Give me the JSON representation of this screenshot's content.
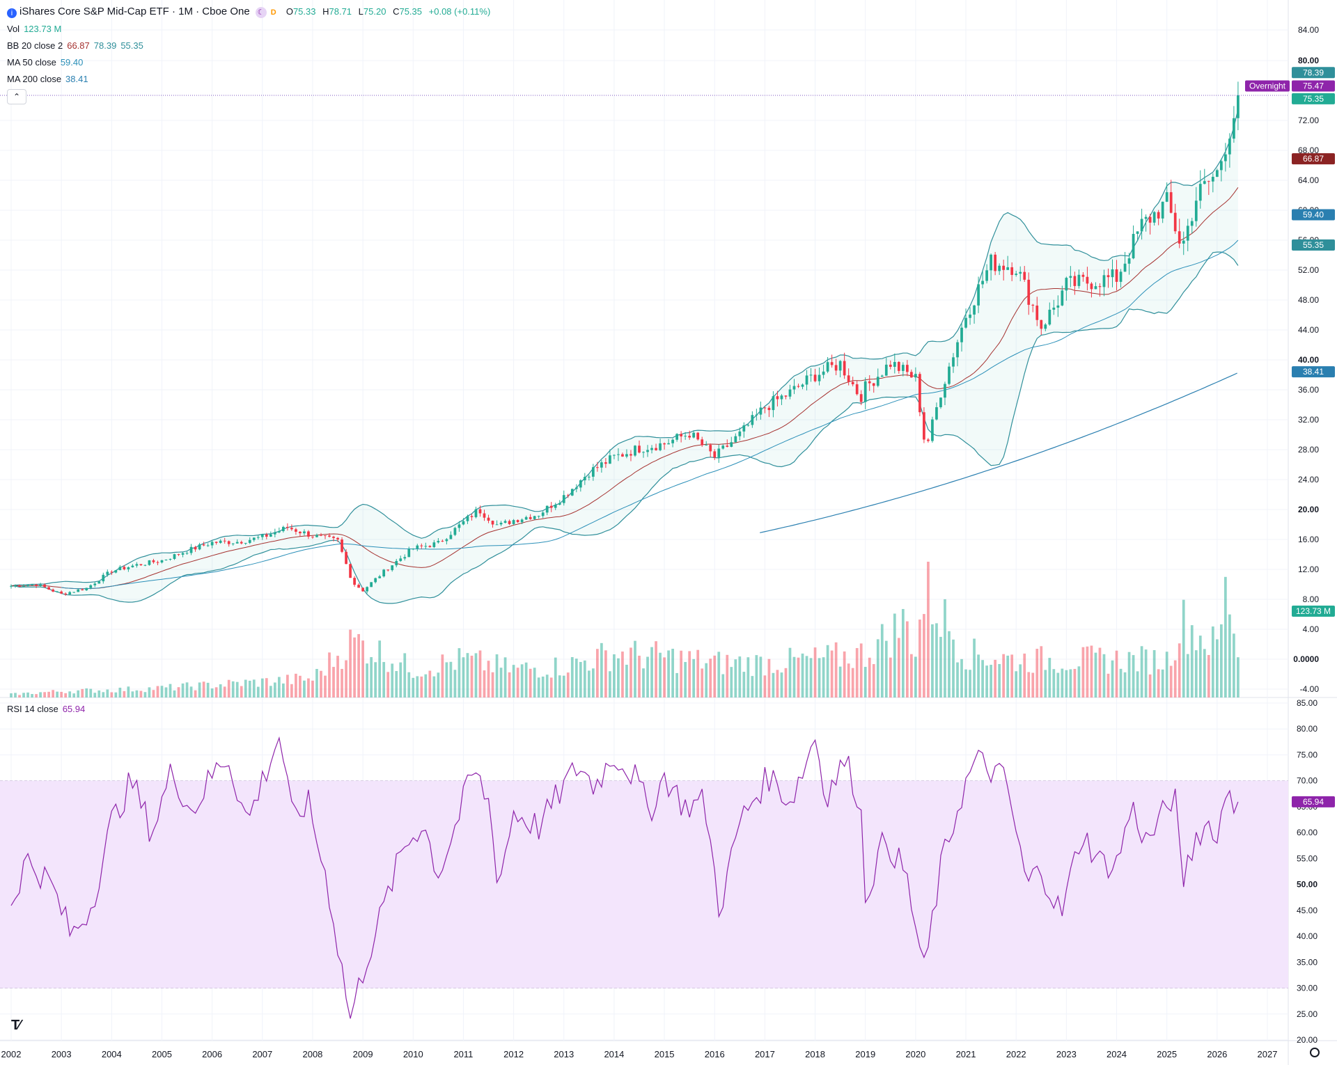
{
  "header": {
    "title": "iShares Core S&P Mid-Cap ETF · 1M · Cboe One",
    "d_badge": "D",
    "ohlc": {
      "o": "75.33",
      "h": "78.71",
      "l": "75.20",
      "c": "75.35",
      "chg": "+0.08 (+0.11%)"
    }
  },
  "indicators": {
    "vol": {
      "label": "Vol",
      "value": "123.73 M"
    },
    "bb": {
      "label": "BB 20 close 2",
      "basis": "66.87",
      "upper": "78.39",
      "lower": "55.35"
    },
    "ma50": {
      "label": "MA 50 close",
      "value": "59.40"
    },
    "ma200": {
      "label": "MA 200 close",
      "value": "38.41"
    },
    "rsi": {
      "label": "RSI 14 close",
      "value": "65.94"
    }
  },
  "price_tags": {
    "overnight": "Overnight",
    "overnight_value": "75.47",
    "last": "75.35",
    "bb_upper": "78.39",
    "bb_basis": "66.87",
    "ma50": "59.40",
    "bb_lower": "55.35",
    "ma200": "38.41",
    "volume": "123.73 M",
    "rsi": "65.94"
  },
  "icons": [
    "info-icon",
    "moon-icon",
    "tradingview-logo-icon",
    "gear-icon",
    "chevron-up-icon"
  ],
  "colors": {
    "up": "#22ab94",
    "down": "#f23645",
    "bb": "#2f8f9a",
    "bb_basis": "#a5312f",
    "ma50": "#2a8fb8",
    "ma200": "#2a7fb0",
    "rsi": "#8e24aa",
    "rsi_band": "#f3e5fc"
  },
  "chart_data": [
    {
      "type": "candlestick",
      "title": "iShares Core S&P Mid-Cap ETF",
      "interval": "1M",
      "y_axis_ticks": [
        "84.00",
        "80.00",
        "72.00",
        "68.00",
        "64.00",
        "60.00",
        "56.00",
        "52.00",
        "48.00",
        "44.00",
        "40.00",
        "36.00",
        "32.00",
        "28.00",
        "24.00",
        "20.00",
        "16.00",
        "12.00",
        "8.00",
        "4.00",
        "0.0000",
        "-4.00"
      ],
      "x_axis_ticks": [
        "2002",
        "2003",
        "2004",
        "2005",
        "2006",
        "2007",
        "2008",
        "2009",
        "2010",
        "2011",
        "2012",
        "2013",
        "2014",
        "2015",
        "2016",
        "2017",
        "2018",
        "2019",
        "2020",
        "2021",
        "2022",
        "2023",
        "2024",
        "2025",
        "2026",
        "2027"
      ],
      "close_by_year": {
        "x": [
          2002.0,
          2002.5,
          2003.0,
          2003.5,
          2004.0,
          2004.5,
          2005.0,
          2005.5,
          2006.0,
          2006.5,
          2007.0,
          2007.5,
          2008.0,
          2008.5,
          2008.8,
          2009.0,
          2009.5,
          2010.0,
          2010.5,
          2011.0,
          2011.3,
          2011.7,
          2012.0,
          2012.5,
          2013.0,
          2013.5,
          2014.0,
          2014.5,
          2015.0,
          2015.5,
          2016.0,
          2016.5,
          2017.0,
          2017.5,
          2018.0,
          2018.5,
          2018.9,
          2019.0,
          2019.5,
          2020.0,
          2020.2,
          2020.5,
          2021.0,
          2021.5,
          2022.0,
          2022.5,
          2022.8,
          2023.0,
          2023.5,
          2024.0,
          2024.5,
          2025.0,
          2025.3,
          2025.6,
          2026.0,
          2026.3,
          2026.45
        ],
        "y": [
          9.8,
          10.0,
          8.7,
          9.5,
          11.8,
          12.6,
          13.2,
          14.5,
          15.6,
          15.7,
          16.3,
          17.6,
          16.5,
          15.8,
          10.2,
          9.2,
          12.2,
          14.8,
          15.5,
          18.3,
          20.0,
          17.8,
          18.6,
          19.4,
          21.8,
          25.0,
          27.0,
          28.2,
          28.8,
          30.2,
          27.0,
          30.0,
          33.7,
          35.6,
          38.0,
          39.5,
          35.0,
          36.3,
          39.6,
          37.5,
          28.0,
          35.7,
          46.0,
          53.0,
          52.5,
          44.5,
          47.5,
          50.0,
          50.5,
          51.0,
          58.0,
          61.0,
          55.0,
          62.0,
          65.0,
          72.0,
          75.35
        ]
      },
      "bb_upper_last": 78.39,
      "bb_basis_last": 66.87,
      "bb_lower_last": 55.35,
      "ma50_last": 59.4,
      "ma200_last": 38.41,
      "ma200_start": {
        "x": 2016.9,
        "y": 16.9
      }
    },
    {
      "type": "bar",
      "title": "Vol",
      "last_value": "123.73 M",
      "x": [
        2002,
        2003,
        2004,
        2005,
        2006,
        2007,
        2008,
        2008.8,
        2009,
        2010,
        2011,
        2012,
        2013,
        2014,
        2015,
        2016,
        2017,
        2018,
        2019,
        2019.8,
        2020,
        2020.2,
        2021,
        2022,
        2023,
        2024,
        2025,
        2025.3,
        2026,
        2026.2,
        2026.45
      ],
      "y": [
        0.5,
        1.0,
        1.2,
        1.5,
        2.0,
        2.5,
        3.0,
        9.0,
        8.5,
        4.5,
        6.0,
        4.5,
        5.0,
        7.0,
        6.5,
        5.5,
        5.5,
        6.0,
        7.0,
        12.0,
        8.0,
        17.0,
        7.0,
        6.0,
        6.0,
        6.0,
        6.0,
        12.0,
        8.0,
        18.0,
        6.0
      ]
    },
    {
      "type": "line",
      "title": "RSI 14 close",
      "last_value": 65.94,
      "y_axis_ticks": [
        "85.00",
        "80.00",
        "75.00",
        "70.00",
        "65.00",
        "60.00",
        "55.00",
        "50.00",
        "45.00",
        "40.00",
        "35.00",
        "30.00",
        "25.00",
        "20.00"
      ],
      "band": [
        30,
        70
      ],
      "x": [
        2002.0,
        2002.3,
        2002.8,
        2003.2,
        2003.6,
        2004.0,
        2004.4,
        2004.8,
        2005.2,
        2005.6,
        2006.0,
        2006.3,
        2006.7,
        2007.0,
        2007.35,
        2007.6,
        2007.9,
        2008.3,
        2008.75,
        2009.05,
        2009.4,
        2009.8,
        2010.2,
        2010.5,
        2010.8,
        2011.2,
        2011.5,
        2011.7,
        2012.0,
        2012.5,
        2013.0,
        2013.3,
        2013.6,
        2014.0,
        2014.4,
        2014.7,
        2015.0,
        2015.4,
        2015.8,
        2016.1,
        2016.5,
        2016.8,
        2017.1,
        2017.5,
        2017.8,
        2018.0,
        2018.2,
        2018.6,
        2018.9,
        2019.0,
        2019.4,
        2019.8,
        2020.17,
        2020.5,
        2020.9,
        2021.2,
        2021.5,
        2021.8,
        2022.2,
        2022.5,
        2022.9,
        2023.3,
        2023.7,
        2024.0,
        2024.3,
        2024.6,
        2024.9,
        2025.15,
        2025.3,
        2025.6,
        2025.9,
        2026.0,
        2026.2,
        2026.35,
        2026.5
      ],
      "y": [
        46,
        55,
        50,
        40,
        46,
        62,
        70,
        60,
        72,
        64,
        71,
        75,
        62,
        70,
        79,
        62,
        66,
        50,
        24,
        35,
        45,
        57,
        62,
        52,
        60,
        72,
        66,
        50,
        64,
        61,
        69,
        73,
        69,
        75,
        71,
        64,
        71,
        65,
        66,
        45,
        62,
        67,
        71,
        66,
        73,
        79,
        67,
        74,
        66,
        48,
        59,
        52,
        33,
        53,
        67,
        74,
        72,
        70,
        50,
        53,
        44,
        60,
        54,
        54,
        65,
        58,
        63,
        68,
        50,
        60,
        62,
        58,
        70,
        65,
        65.94
      ]
    }
  ]
}
